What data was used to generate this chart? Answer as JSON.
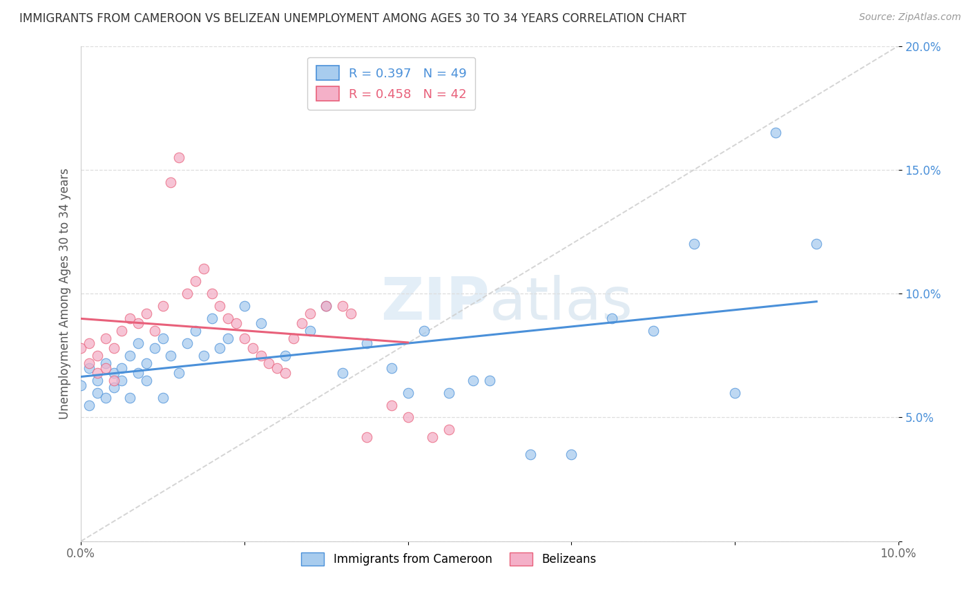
{
  "title": "IMMIGRANTS FROM CAMEROON VS BELIZEAN UNEMPLOYMENT AMONG AGES 30 TO 34 YEARS CORRELATION CHART",
  "source": "Source: ZipAtlas.com",
  "ylabel": "Unemployment Among Ages 30 to 34 years",
  "xlim": [
    0.0,
    0.1
  ],
  "ylim": [
    0.0,
    0.2
  ],
  "legend_r1": "R = 0.397",
  "legend_n1": "N = 49",
  "legend_r2": "R = 0.458",
  "legend_n2": "N = 42",
  "legend_label1": "Immigrants from Cameroon",
  "legend_label2": "Belizeans",
  "color_blue": "#A8CCEE",
  "color_pink": "#F4B0C8",
  "color_blue_line": "#4A90D9",
  "color_pink_line": "#E8607A",
  "color_blue_text": "#4A90D9",
  "color_pink_text": "#E8607A",
  "color_diag": "#D0D0D0",
  "blue_x": [
    0.0,
    0.001,
    0.001,
    0.002,
    0.002,
    0.003,
    0.003,
    0.004,
    0.004,
    0.005,
    0.005,
    0.006,
    0.006,
    0.007,
    0.007,
    0.008,
    0.008,
    0.009,
    0.01,
    0.01,
    0.011,
    0.012,
    0.013,
    0.014,
    0.015,
    0.016,
    0.017,
    0.018,
    0.02,
    0.022,
    0.025,
    0.028,
    0.03,
    0.032,
    0.035,
    0.038,
    0.04,
    0.042,
    0.045,
    0.048,
    0.05,
    0.055,
    0.06,
    0.065,
    0.07,
    0.075,
    0.08,
    0.085,
    0.09
  ],
  "blue_y": [
    0.063,
    0.055,
    0.07,
    0.06,
    0.065,
    0.058,
    0.072,
    0.062,
    0.068,
    0.07,
    0.065,
    0.058,
    0.075,
    0.068,
    0.08,
    0.072,
    0.065,
    0.078,
    0.082,
    0.058,
    0.075,
    0.068,
    0.08,
    0.085,
    0.075,
    0.09,
    0.078,
    0.082,
    0.095,
    0.088,
    0.075,
    0.085,
    0.095,
    0.068,
    0.08,
    0.07,
    0.06,
    0.085,
    0.06,
    0.065,
    0.065,
    0.035,
    0.035,
    0.09,
    0.085,
    0.12,
    0.06,
    0.165,
    0.12
  ],
  "pink_x": [
    0.0,
    0.001,
    0.001,
    0.002,
    0.002,
    0.003,
    0.003,
    0.004,
    0.004,
    0.005,
    0.006,
    0.007,
    0.008,
    0.009,
    0.01,
    0.011,
    0.012,
    0.013,
    0.014,
    0.015,
    0.016,
    0.017,
    0.018,
    0.019,
    0.02,
    0.021,
    0.022,
    0.023,
    0.024,
    0.025,
    0.026,
    0.027,
    0.028,
    0.03,
    0.032,
    0.033,
    0.035,
    0.038,
    0.04,
    0.042,
    0.043,
    0.045
  ],
  "pink_y": [
    0.078,
    0.072,
    0.08,
    0.068,
    0.075,
    0.07,
    0.082,
    0.065,
    0.078,
    0.085,
    0.09,
    0.088,
    0.092,
    0.085,
    0.095,
    0.145,
    0.155,
    0.1,
    0.105,
    0.11,
    0.1,
    0.095,
    0.09,
    0.088,
    0.082,
    0.078,
    0.075,
    0.072,
    0.07,
    0.068,
    0.082,
    0.088,
    0.092,
    0.095,
    0.095,
    0.092,
    0.042,
    0.055,
    0.05,
    0.18,
    0.042,
    0.045
  ]
}
